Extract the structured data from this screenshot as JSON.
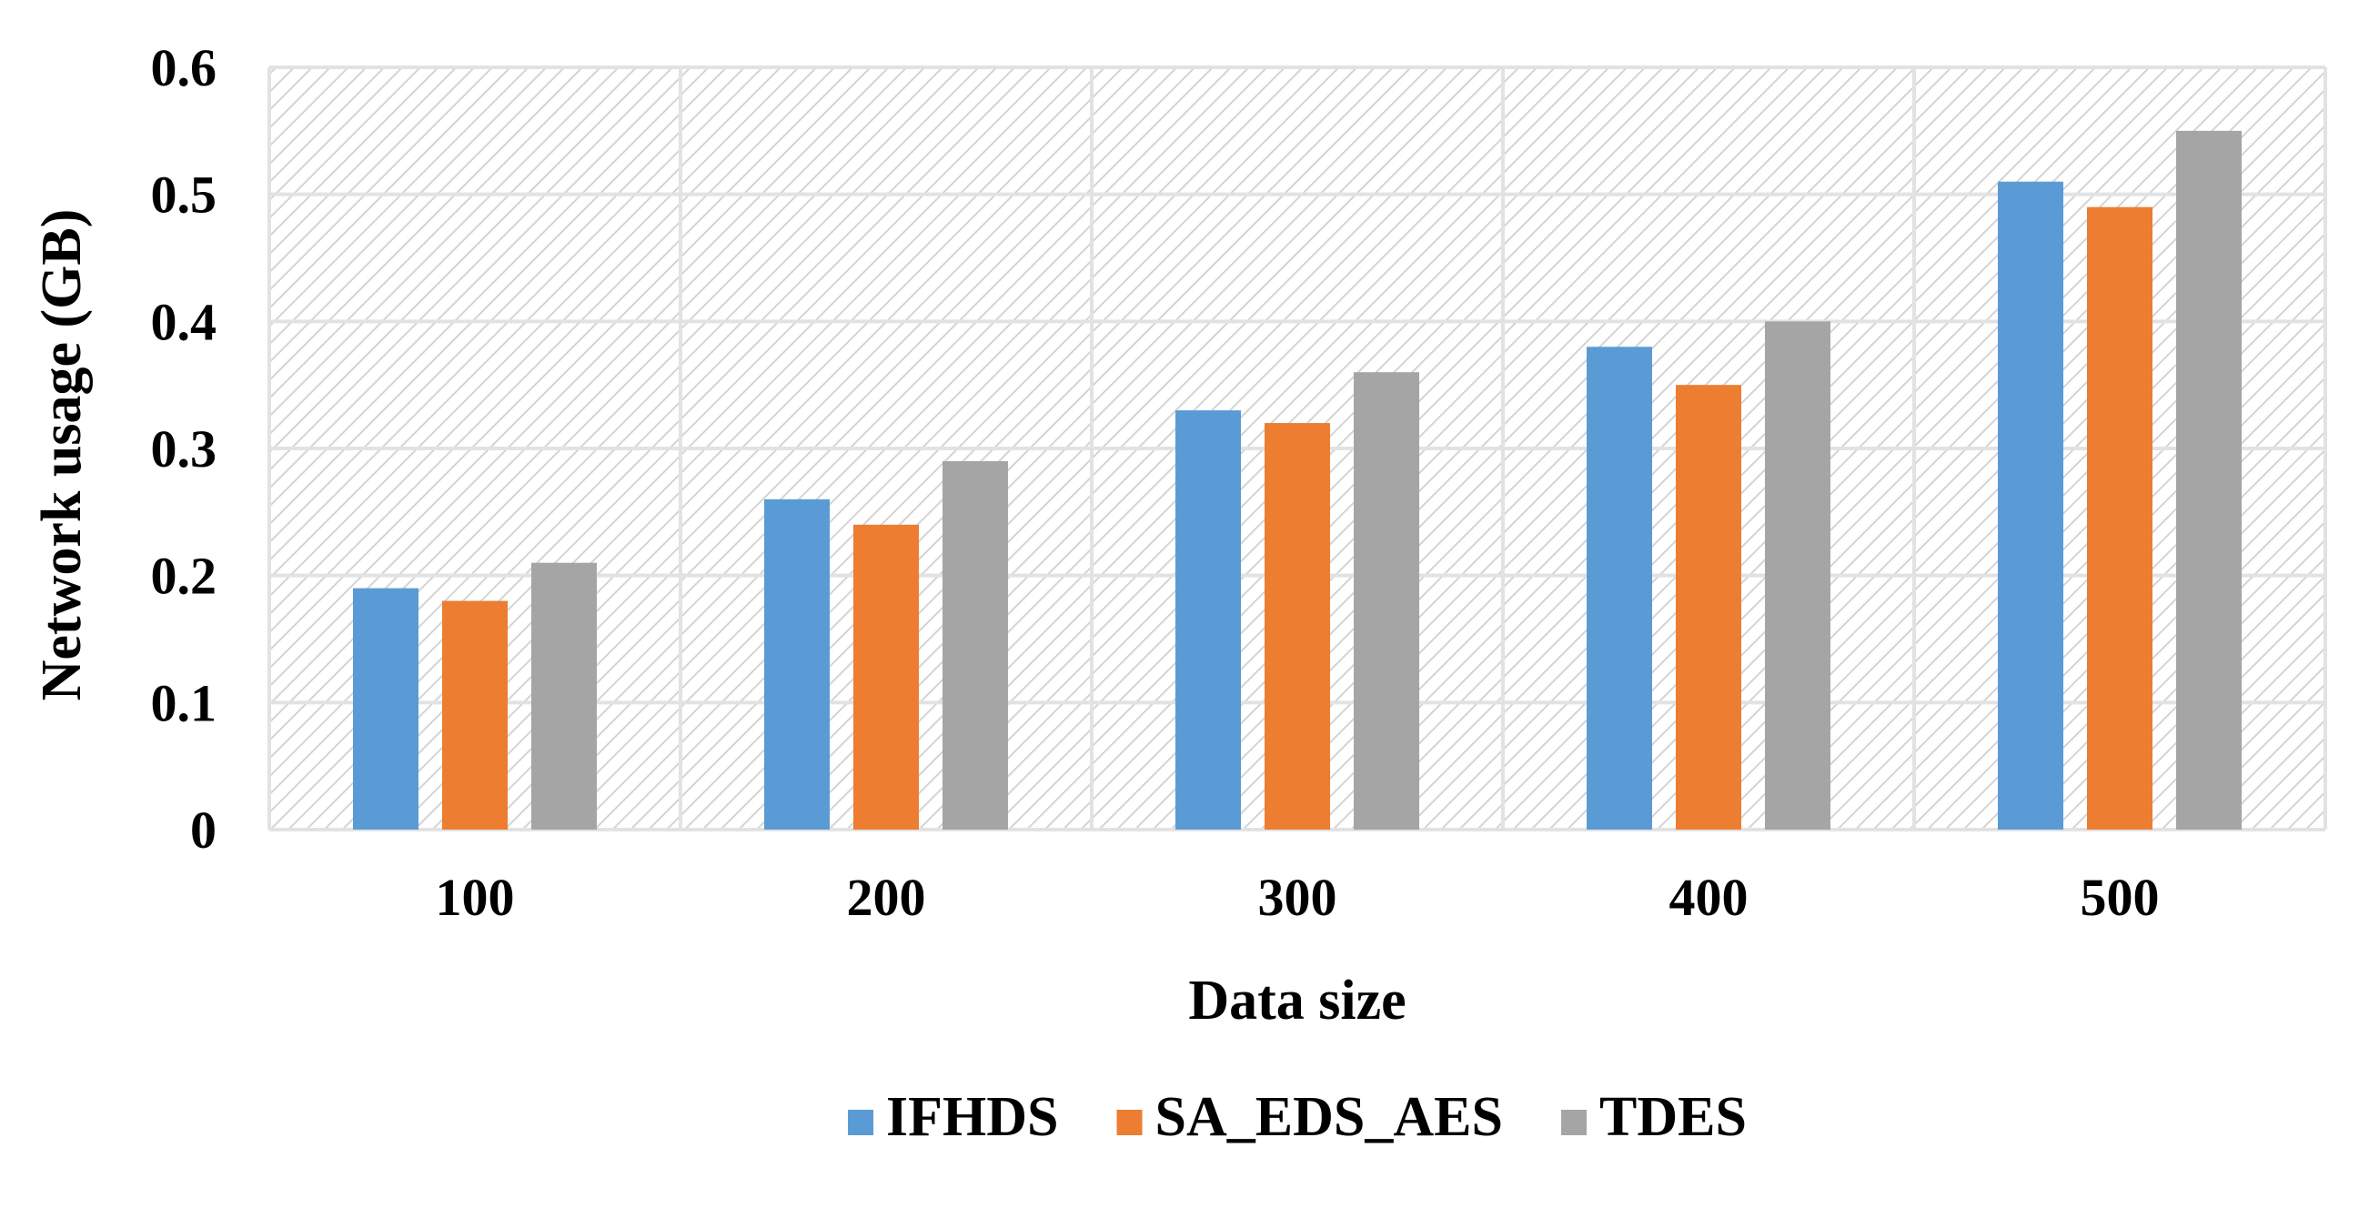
{
  "chart_data": {
    "type": "bar",
    "title": "",
    "xlabel": "Data size",
    "ylabel": "Network usage (GB)",
    "ylim": [
      0,
      0.6
    ],
    "yticks": [
      "0",
      "0.1",
      "0.2",
      "0.3",
      "0.4",
      "0.5",
      "0.6"
    ],
    "categories": [
      "100",
      "200",
      "300",
      "400",
      "500"
    ],
    "series": [
      {
        "name": "IFHDS",
        "color": "#5B9BD5",
        "values": [
          0.19,
          0.26,
          0.33,
          0.38,
          0.51
        ]
      },
      {
        "name": "SA_EDS_AES",
        "color": "#ED7D31",
        "values": [
          0.18,
          0.24,
          0.32,
          0.35,
          0.49
        ]
      },
      {
        "name": "TDES",
        "color": "#A5A5A5",
        "values": [
          0.21,
          0.29,
          0.36,
          0.4,
          0.55
        ]
      }
    ],
    "grid": true,
    "legend": "bottom"
  }
}
